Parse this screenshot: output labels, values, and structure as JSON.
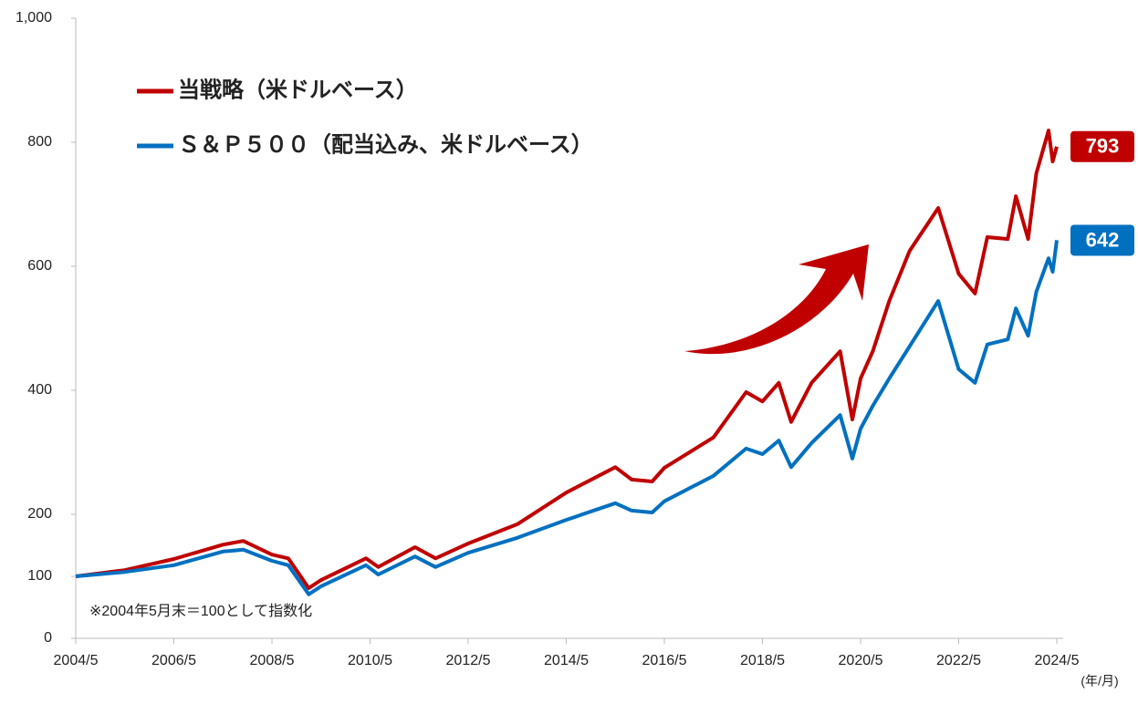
{
  "chart_data": {
    "type": "line",
    "x": [
      "2004/5",
      "2005/5",
      "2006/5",
      "2007/5",
      "2007/10",
      "2008/5",
      "2008/9",
      "2009/2",
      "2009/5",
      "2010/4",
      "2010/7",
      "2011/4",
      "2011/9",
      "2012/5",
      "2013/5",
      "2014/5",
      "2015/5",
      "2015/9",
      "2016/2",
      "2016/5",
      "2017/5",
      "2018/1",
      "2018/5",
      "2018/9",
      "2018/12",
      "2019/5",
      "2019/12",
      "2020/3",
      "2020/5",
      "2020/8",
      "2020/12",
      "2021/5",
      "2021/12",
      "2022/5",
      "2022/9",
      "2022/12",
      "2023/5",
      "2023/7",
      "2023/10",
      "2023/12",
      "2024/3",
      "2024/4",
      "2024/5"
    ],
    "series": [
      {
        "name": "当戦略（米ドルベース）",
        "color": "#c00000",
        "values": [
          100,
          110,
          128,
          151,
          157,
          135,
          129,
          81,
          94,
          129,
          115,
          147,
          129,
          153,
          184,
          235,
          276,
          256,
          253,
          275,
          324,
          397,
          382,
          412,
          349,
          412,
          463,
          353,
          419,
          463,
          544,
          625,
          694,
          588,
          556,
          647,
          644,
          713,
          644,
          750,
          819,
          769,
          793
        ]
      },
      {
        "name": "Ｓ＆Ｐ５００（配当込み、米ドルベース）",
        "color": "#0070c0",
        "values": [
          100,
          107,
          118,
          140,
          143,
          125,
          118,
          71,
          84,
          118,
          103,
          132,
          115,
          138,
          162,
          191,
          218,
          206,
          203,
          221,
          262,
          306,
          297,
          319,
          276,
          315,
          360,
          290,
          338,
          375,
          419,
          471,
          544,
          434,
          412,
          474,
          482,
          532,
          488,
          559,
          613,
          591,
          642
        ]
      }
    ],
    "ylim": [
      0,
      1000
    ],
    "yticks": [
      0,
      100,
      200,
      400,
      600,
      800,
      1000,
      {
        "value": 1000,
        "label": "1,000"
      }
    ],
    "xticks": [
      "2004/5",
      "2006/5",
      "2008/5",
      "2010/5",
      "2012/5",
      "2014/5",
      "2016/5",
      "2018/5",
      "2020/5",
      "2022/5",
      "2024/5"
    ],
    "x_label": "(年/月)",
    "annotation": "※2004年5月末＝100として指数化"
  }
}
